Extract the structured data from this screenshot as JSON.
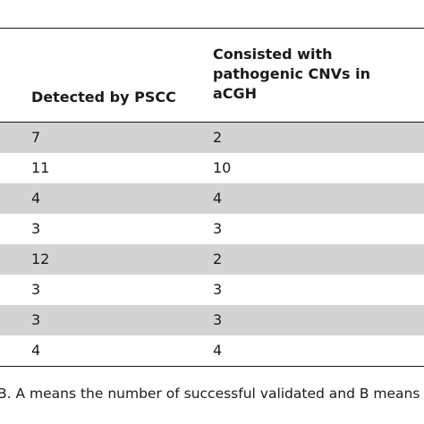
{
  "table": {
    "headers": {
      "detected": "Detected by PSCC",
      "consisted": "Consisted with pathogenic CNVs in aCGH"
    },
    "rows": [
      {
        "detected": "7",
        "consisted": "2",
        "shaded": true
      },
      {
        "detected": "11",
        "consisted": "10",
        "shaded": false
      },
      {
        "detected": "4",
        "consisted": "4",
        "shaded": true
      },
      {
        "detected": "3",
        "consisted": "3",
        "shaded": false
      },
      {
        "detected": "12",
        "consisted": "2",
        "shaded": true
      },
      {
        "detected": "3",
        "consisted": "3",
        "shaded": false
      },
      {
        "detected": "3",
        "consisted": "3",
        "shaded": true
      },
      {
        "detected": "4",
        "consisted": "4",
        "shaded": false
      }
    ]
  },
  "footnote": "B. A means the number of successful validated and B means"
}
